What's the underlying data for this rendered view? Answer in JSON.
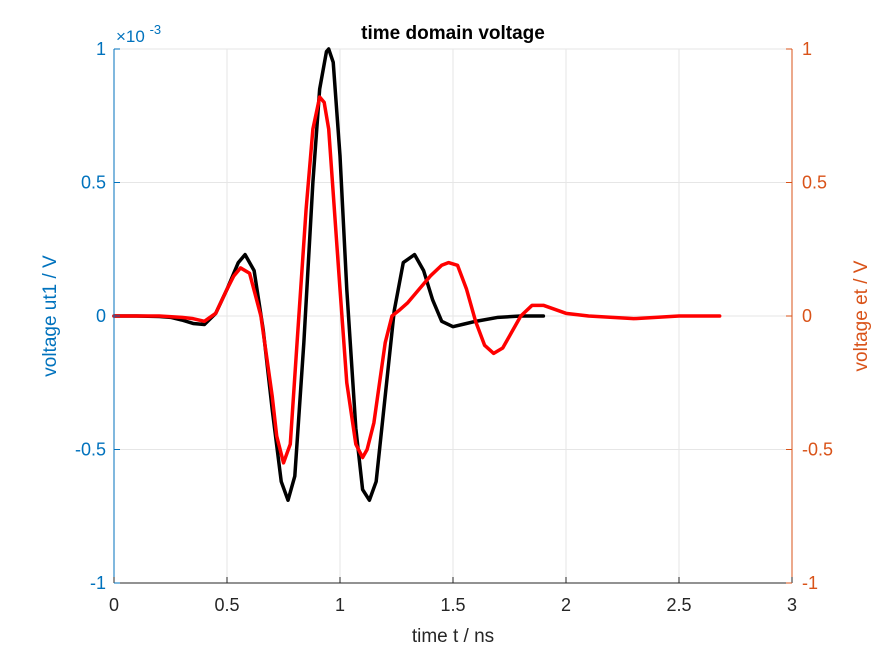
{
  "chart_data": {
    "type": "line",
    "title": "time domain voltage",
    "xlabel": "time t / ns",
    "ylabel_left": "voltage ut1 / V",
    "ylabel_right": "voltage et / V",
    "left_exponent_base": "×10",
    "left_exponent_power": "-3",
    "xlim": [
      0,
      3
    ],
    "ylim_left": [
      -1,
      1
    ],
    "ylim_right": [
      -1,
      1
    ],
    "x_ticks": [
      0,
      0.5,
      1,
      1.5,
      2,
      2.5,
      3
    ],
    "x_tick_labels": [
      "0",
      "0.5",
      "1",
      "1.5",
      "2",
      "2.5",
      "3"
    ],
    "y_left_ticks": [
      -1,
      -0.5,
      0,
      0.5,
      1
    ],
    "y_left_tick_labels": [
      "-1",
      "-0.5",
      "0",
      "0.5",
      "1"
    ],
    "y_right_ticks": [
      -1,
      -0.5,
      0,
      0.5,
      1
    ],
    "y_right_tick_labels": [
      "-1",
      "-0.5",
      "0",
      "0.5",
      "1"
    ],
    "grid": true,
    "colors": {
      "left_axis": "#0072bd",
      "right_axis": "#d95319",
      "series_left": "#000000",
      "series_right": "#ff0000",
      "grid": "#e6e6e6"
    },
    "series": [
      {
        "axis": "left",
        "color": "#000000",
        "x": [
          0,
          0.1,
          0.2,
          0.25,
          0.3,
          0.35,
          0.4,
          0.45,
          0.5,
          0.55,
          0.58,
          0.62,
          0.66,
          0.7,
          0.74,
          0.77,
          0.8,
          0.84,
          0.88,
          0.91,
          0.94,
          0.95,
          0.97,
          1.0,
          1.03,
          1.07,
          1.1,
          1.13,
          1.16,
          1.2,
          1.24,
          1.28,
          1.33,
          1.37,
          1.41,
          1.45,
          1.5,
          1.55,
          1.6,
          1.7,
          1.8,
          1.9
        ],
        "y": [
          0,
          0,
          -0.002,
          -0.005,
          -0.015,
          -0.028,
          -0.032,
          0.01,
          0.1,
          0.2,
          0.23,
          0.17,
          -0.05,
          -0.35,
          -0.62,
          -0.69,
          -0.6,
          -0.1,
          0.5,
          0.85,
          0.99,
          1.0,
          0.95,
          0.6,
          0.1,
          -0.42,
          -0.65,
          -0.69,
          -0.62,
          -0.3,
          0.02,
          0.2,
          0.23,
          0.17,
          0.06,
          -0.02,
          -0.04,
          -0.03,
          -0.02,
          -0.005,
          0,
          0
        ]
      },
      {
        "axis": "right",
        "color": "#ff0000",
        "x": [
          0,
          0.2,
          0.3,
          0.35,
          0.4,
          0.45,
          0.5,
          0.53,
          0.56,
          0.6,
          0.65,
          0.7,
          0.72,
          0.75,
          0.78,
          0.81,
          0.85,
          0.88,
          0.91,
          0.93,
          0.95,
          1.0,
          1.03,
          1.07,
          1.1,
          1.12,
          1.15,
          1.2,
          1.23,
          1.26,
          1.3,
          1.35,
          1.4,
          1.45,
          1.48,
          1.52,
          1.56,
          1.6,
          1.64,
          1.68,
          1.72,
          1.76,
          1.8,
          1.85,
          1.9,
          2.0,
          2.1,
          2.3,
          2.5,
          2.68
        ],
        "y": [
          0,
          0,
          -0.005,
          -0.01,
          -0.02,
          0.01,
          0.1,
          0.15,
          0.18,
          0.16,
          0.0,
          -0.3,
          -0.45,
          -0.55,
          -0.48,
          -0.1,
          0.4,
          0.7,
          0.82,
          0.8,
          0.7,
          0.1,
          -0.25,
          -0.48,
          -0.53,
          -0.5,
          -0.4,
          -0.1,
          0.0,
          0.02,
          0.05,
          0.1,
          0.15,
          0.19,
          0.2,
          0.19,
          0.1,
          -0.02,
          -0.11,
          -0.14,
          -0.12,
          -0.06,
          0.0,
          0.04,
          0.04,
          0.01,
          0.0,
          -0.01,
          0.0,
          0.0
        ]
      }
    ]
  }
}
